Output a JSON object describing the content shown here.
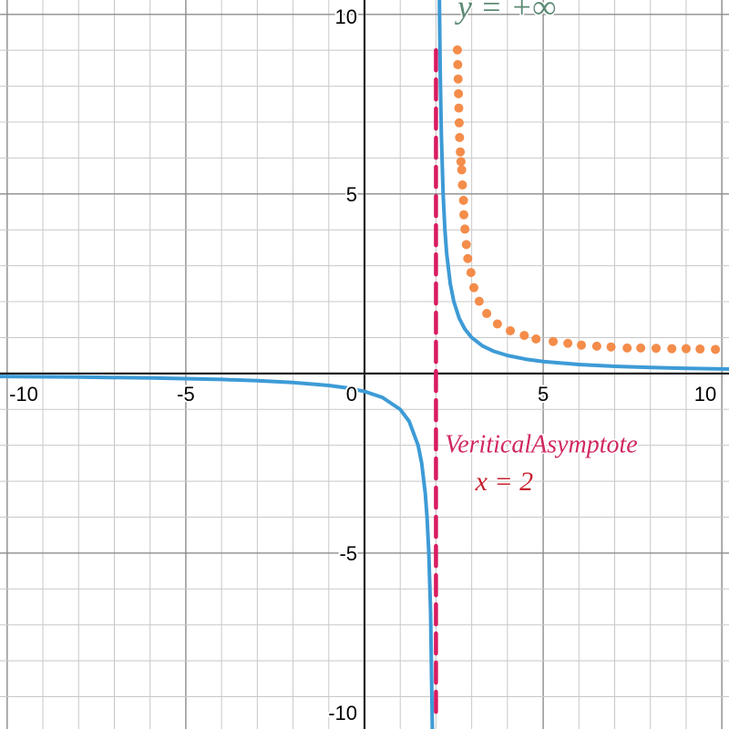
{
  "chart_data": {
    "type": "line",
    "xlim": [
      -10.2,
      10.2
    ],
    "ylim": [
      -9.9,
      10.4
    ],
    "grid": true,
    "minor_grid_step": 1,
    "major_grid_step": 5,
    "x_tick_labels": [
      "-10",
      "-5",
      "0",
      "5",
      "10"
    ],
    "x_tick_values": [
      -10,
      -5,
      0,
      5,
      10
    ],
    "y_tick_labels": [
      "10",
      "5",
      "-5",
      "-10"
    ],
    "y_tick_values": [
      10,
      5,
      -5,
      -10
    ],
    "series": [
      {
        "style": "solid",
        "color": "#3d9bd6",
        "branches": [
          [
            [
              -10.2,
              -0.082
            ],
            [
              -8,
              -0.1
            ],
            [
              -6,
              -0.125
            ],
            [
              -4,
              -0.167
            ],
            [
              -3,
              -0.2
            ],
            [
              -2,
              -0.25
            ],
            [
              -1,
              -0.333
            ],
            [
              -0.5,
              -0.4
            ],
            [
              0,
              -0.5
            ],
            [
              0.5,
              -0.667
            ],
            [
              1,
              -1
            ],
            [
              1.25,
              -1.333
            ],
            [
              1.5,
              -2
            ],
            [
              1.6,
              -2.5
            ],
            [
              1.7,
              -3.333
            ],
            [
              1.75,
              -4
            ],
            [
              1.8,
              -5
            ],
            [
              1.85,
              -6.667
            ],
            [
              1.9,
              -10
            ]
          ],
          [
            [
              2.095,
              10.526
            ],
            [
              2.1,
              10
            ],
            [
              2.12,
              8.333
            ],
            [
              2.15,
              6.667
            ],
            [
              2.2,
              5
            ],
            [
              2.25,
              4
            ],
            [
              2.3,
              3.333
            ],
            [
              2.4,
              2.5
            ],
            [
              2.5,
              2
            ],
            [
              2.65,
              1.538
            ],
            [
              2.8,
              1.25
            ],
            [
              3,
              1
            ],
            [
              3.3,
              0.769
            ],
            [
              3.6,
              0.625
            ],
            [
              4,
              0.5
            ],
            [
              4.5,
              0.4
            ],
            [
              5,
              0.333
            ],
            [
              6,
              0.25
            ],
            [
              7,
              0.2
            ],
            [
              8,
              0.167
            ],
            [
              9,
              0.143
            ],
            [
              10.2,
              0.122
            ]
          ]
        ]
      },
      {
        "style": "dotted",
        "color": "#f48c4a",
        "points": [
          [
            2.6,
            9.01
          ],
          [
            2.61,
            8.6
          ],
          [
            2.62,
            8.2
          ],
          [
            2.63,
            7.79
          ],
          [
            2.64,
            7.39
          ],
          [
            2.65,
            6.98
          ],
          [
            2.66,
            6.57
          ],
          [
            2.68,
            6.17
          ],
          [
            2.7,
            5.9
          ],
          [
            2.72,
            5.67
          ],
          [
            2.74,
            5.25
          ],
          [
            2.77,
            4.82
          ],
          [
            2.78,
            4.42
          ],
          [
            2.81,
            4.02
          ],
          [
            2.85,
            3.59
          ],
          [
            2.89,
            3.2
          ],
          [
            2.98,
            2.81
          ],
          [
            3.06,
            2.39
          ],
          [
            3.21,
            2.01
          ],
          [
            3.42,
            1.67
          ],
          [
            3.72,
            1.38
          ],
          [
            4.08,
            1.19
          ],
          [
            4.47,
            1.06
          ],
          [
            4.8,
            0.96
          ],
          [
            5.28,
            0.89
          ],
          [
            5.69,
            0.84
          ],
          [
            6.07,
            0.79
          ],
          [
            6.5,
            0.76
          ],
          [
            6.9,
            0.74
          ],
          [
            7.35,
            0.71
          ],
          [
            7.73,
            0.71
          ],
          [
            8.16,
            0.7
          ],
          [
            8.6,
            0.69
          ],
          [
            9.0,
            0.69
          ],
          [
            9.39,
            0.68
          ],
          [
            9.82,
            0.67
          ]
        ]
      },
      {
        "style": "dashed",
        "color": "#d81b60",
        "points": [
          [
            2,
            9.0
          ],
          [
            2,
            -9.5
          ]
        ]
      }
    ],
    "annotations": [
      {
        "text": "y = +∞",
        "color": "#5d8a74",
        "at": [
          2.6,
          9.9
        ]
      },
      {
        "text": "VeriticalAsymptote",
        "color": "#d0285f",
        "at": [
          2.25,
          -2.2
        ]
      },
      {
        "text": "x = 2",
        "color": "#c8202e",
        "at": [
          3.1,
          -3.25
        ]
      }
    ]
  }
}
